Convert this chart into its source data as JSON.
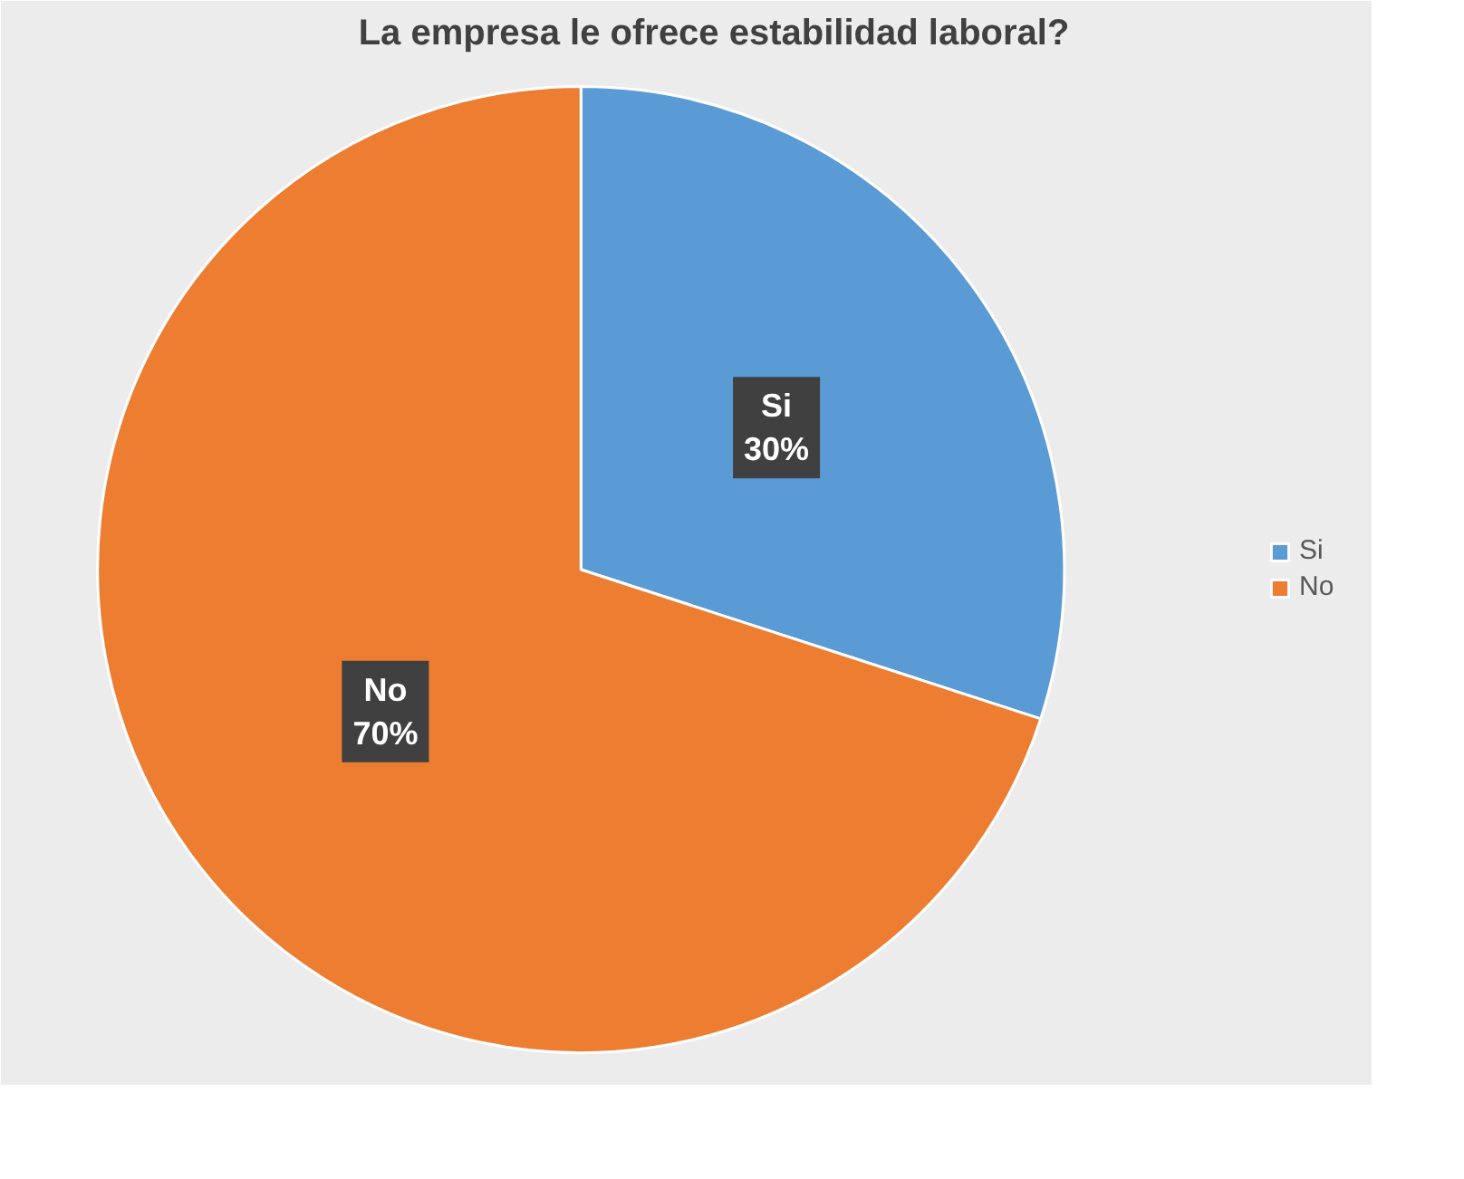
{
  "chart_data": {
    "type": "pie",
    "title": "La empresa le ofrece estabilidad laboral?",
    "categories": [
      "Si",
      "No"
    ],
    "values": [
      30,
      70
    ],
    "value_labels": [
      "30%",
      "70%"
    ],
    "colors": [
      "#5b9bd5",
      "#ed7d31"
    ],
    "legend": "right"
  }
}
